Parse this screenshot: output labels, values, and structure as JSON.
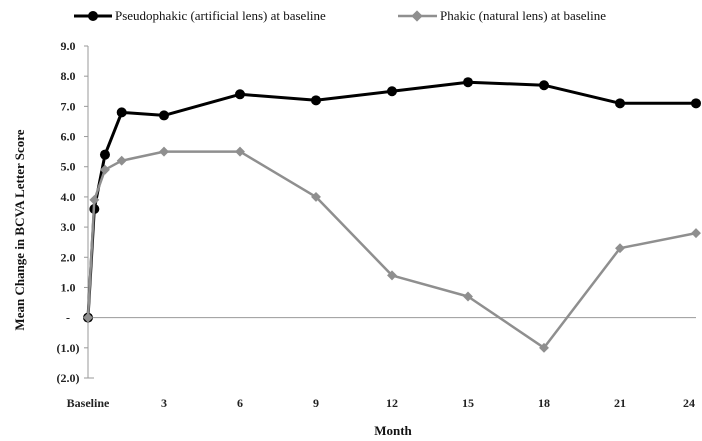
{
  "chart_data": {
    "type": "line",
    "title": "",
    "xlabel": "Month",
    "ylabel": "Mean Change in BCVA Letter Score",
    "xlim": [
      0,
      24
    ],
    "ylim": [
      -2,
      9
    ],
    "x_tick_values": [
      0,
      3,
      6,
      9,
      12,
      15,
      18,
      21,
      24
    ],
    "x_tick_labels": [
      "Baseline",
      "3",
      "6",
      "9",
      "12",
      "15",
      "18",
      "21",
      "24"
    ],
    "y_tick_values": [
      9,
      8,
      7,
      6,
      5,
      4,
      3,
      2,
      1,
      0,
      -1,
      -2
    ],
    "y_tick_labels": [
      "9.0",
      "8.0",
      "7.0",
      "6.0",
      "5.0",
      "4.0",
      "3.0",
      "2.0",
      "1.0",
      "-",
      "(1.0)",
      "(2.0)"
    ],
    "grid": false,
    "legend_position": "top",
    "series": [
      {
        "name": "Pseudophakic (artificial lens) at baseline",
        "color": "#000000",
        "marker": "circle",
        "x": [
          0,
          0.25,
          0.67,
          1.33,
          3,
          6,
          9,
          12,
          15,
          18,
          21,
          24
        ],
        "y": [
          0,
          3.6,
          5.4,
          6.8,
          6.7,
          7.4,
          7.2,
          7.5,
          7.8,
          7.7,
          7.1,
          7.1
        ]
      },
      {
        "name": "Phakic (natural lens) at baseline",
        "color": "#8f8f8f",
        "marker": "diamond",
        "x": [
          0,
          0.25,
          0.67,
          1.33,
          3,
          6,
          9,
          12,
          15,
          18,
          21,
          24
        ],
        "y": [
          0,
          3.9,
          4.9,
          5.2,
          5.5,
          5.5,
          4.0,
          1.4,
          0.7,
          -1.0,
          2.3,
          2.8
        ]
      }
    ]
  }
}
